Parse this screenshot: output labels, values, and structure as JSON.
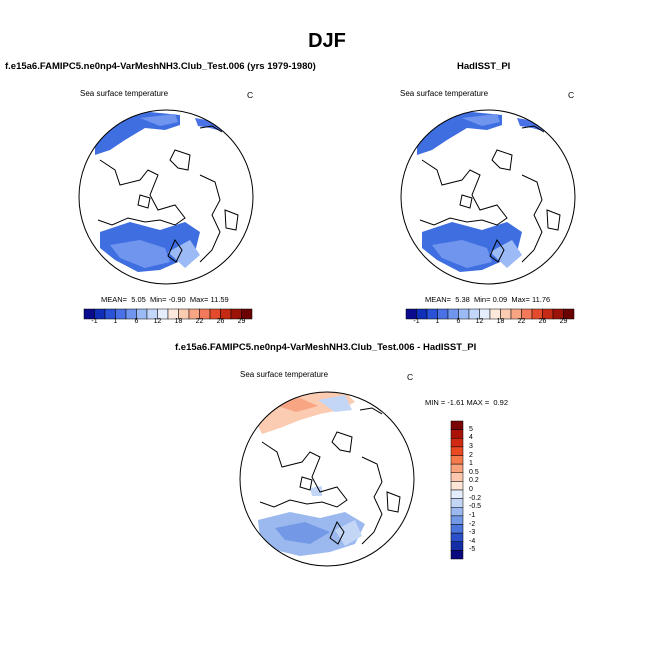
{
  "figure": {
    "title": "DJF"
  },
  "panels": {
    "model": {
      "title": "f.e15a6.FAMIPC5.ne0np4-VarMeshNH3.Club_Test.006 (yrs 1979-1980)",
      "variable": "Sea surface temperature",
      "units": "C",
      "stats": {
        "mean_label": "MEAN=",
        "mean": "5.05",
        "min_label": "Min=",
        "min": "-0.90",
        "max_label": "Max=",
        "max": "11.59"
      }
    },
    "obs": {
      "title": "HadISST_PI",
      "variable": "Sea surface temperature",
      "units": "C",
      "stats": {
        "mean_label": "MEAN=",
        "mean": "5.38",
        "min_label": "Min=",
        "min": "0.09",
        "max_label": "Max=",
        "max": "11.76"
      }
    },
    "diff": {
      "title": "f.e15a6.FAMIPC5.ne0np4-VarMeshNH3.Club_Test.006 - HadISST_PI",
      "variable": "Sea surface temperature",
      "units": "C",
      "stats": {
        "min_label": "MIN =",
        "min": "-1.61",
        "max_label": "MAX =",
        "max": "0.92"
      }
    }
  },
  "colorbars": {
    "absolute": {
      "labels": [
        "-1",
        "1",
        "6",
        "12",
        "18",
        "22",
        "26",
        "29"
      ],
      "colors": [
        "#0a0a8c",
        "#0f2fb8",
        "#2952d6",
        "#4a72e6",
        "#6f95ef",
        "#9bbaf6",
        "#c3d7fb",
        "#e6eefd",
        "#fde8dc",
        "#fbcbb2",
        "#f7a583",
        "#f2795a",
        "#e44a2c",
        "#c42a14",
        "#9a1208",
        "#6a0202"
      ]
    },
    "difference": {
      "labels": [
        "5",
        "4",
        "3",
        "2",
        "1",
        "0.5",
        "0.2",
        "0",
        "-0.2",
        "-0.5",
        "-1",
        "-2",
        "-3",
        "-4",
        "-5"
      ],
      "colors": [
        "#7a0505",
        "#a81208",
        "#d02a12",
        "#ea4a22",
        "#f57a4c",
        "#f9a27c",
        "#fcc7ac",
        "#fde6d6",
        "#e4edfb",
        "#c3d6f6",
        "#9bb9ef",
        "#7399e6",
        "#4c76dc",
        "#2a4fc8",
        "#142ca6",
        "#0a0a80"
      ]
    }
  }
}
